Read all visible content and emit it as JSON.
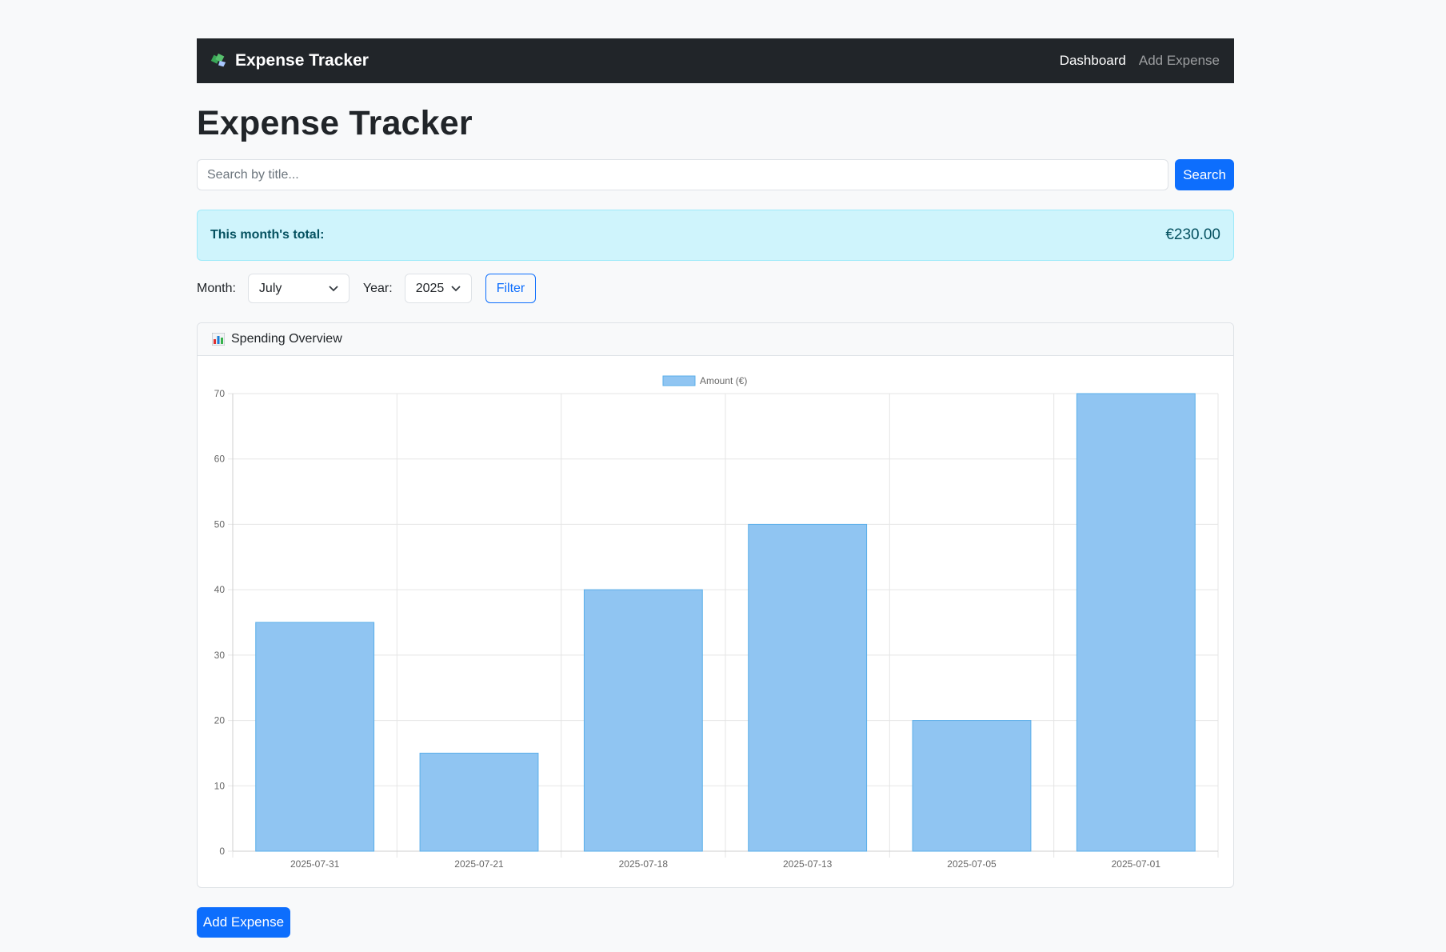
{
  "nav": {
    "brand": "Expense Tracker",
    "links": [
      {
        "label": "Dashboard",
        "active": true
      },
      {
        "label": "Add Expense",
        "active": false
      }
    ]
  },
  "page": {
    "title": "Expense Tracker"
  },
  "search": {
    "placeholder": "Search by title...",
    "value": "",
    "button_label": "Search"
  },
  "summary": {
    "label": "This month's total:",
    "value": "€230.00"
  },
  "filter": {
    "month_label": "Month:",
    "month_value": "July",
    "year_label": "Year:",
    "year_value": "2025",
    "button_label": "Filter"
  },
  "card": {
    "icon": "bar-chart-icon",
    "title": "Spending Overview"
  },
  "chart_data": {
    "type": "bar",
    "categories": [
      "2025-07-31",
      "2025-07-21",
      "2025-07-18",
      "2025-07-13",
      "2025-07-05",
      "2025-07-01"
    ],
    "series": [
      {
        "name": "Amount (€)",
        "values": [
          35,
          15,
          40,
          50,
          20,
          70
        ]
      }
    ],
    "ylim": [
      0,
      70
    ],
    "yticks": [
      0,
      10,
      20,
      30,
      40,
      50,
      60,
      70
    ],
    "grid": true,
    "legend": "top-center",
    "colors": {
      "bar_fill": "#90c5f2",
      "bar_border": "#5aaee9"
    }
  },
  "footer": {
    "add_button_label": "Add Expense"
  },
  "colors": {
    "primary": "#0d6efd",
    "navbar": "#212529",
    "alert_bg": "#cff4fc"
  }
}
